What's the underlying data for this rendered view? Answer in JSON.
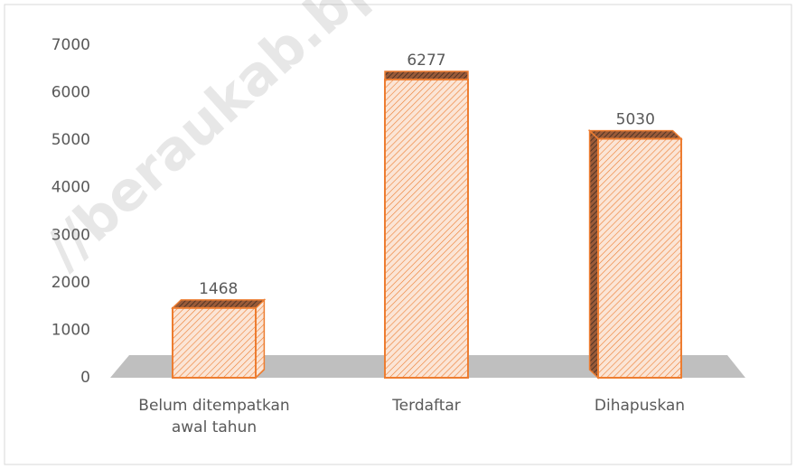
{
  "chart_data": {
    "type": "bar3d",
    "categories": [
      "Belum ditempatkan awal tahun",
      "Terdaftar",
      "Dihapuskan"
    ],
    "values": [
      1468,
      6277,
      5030
    ],
    "color": "#ed7d31",
    "ylim": [
      0,
      7000
    ],
    "yticks": [
      0,
      1000,
      2000,
      3000,
      4000,
      5000,
      6000,
      7000
    ],
    "grid": false,
    "watermark": "//beraukab.bps.go.id"
  }
}
